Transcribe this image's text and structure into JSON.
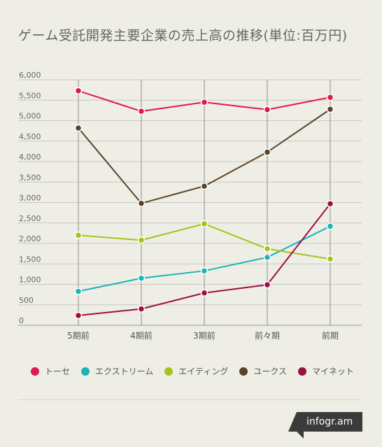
{
  "title": "ゲーム受託開発主要企業の売上高の推移(単位:百万円)",
  "brand": "infogr.am",
  "chart_data": {
    "type": "line",
    "categories": [
      "5期前",
      "4期前",
      "3期前",
      "前々期",
      "前期"
    ],
    "y_ticks": [
      "0",
      "500",
      "1,000",
      "1,500",
      "2,000",
      "2,500",
      "3,000",
      "3,500",
      "4,000",
      "4,500",
      "5,000",
      "5,500",
      "6,000"
    ],
    "ylim": [
      0,
      6000
    ],
    "grid": true,
    "legend_position": "bottom",
    "series": [
      {
        "name": "トーセ",
        "color": "#e0194b",
        "values": [
          5730,
          5230,
          5450,
          5270,
          5570
        ]
      },
      {
        "name": "エクストリーム",
        "color": "#1ab5b5",
        "values": [
          830,
          1150,
          1330,
          1660,
          2420
        ]
      },
      {
        "name": "エイティング",
        "color": "#a8c21c",
        "values": [
          2200,
          2080,
          2480,
          1870,
          1620
        ]
      },
      {
        "name": "ユークス",
        "color": "#5c4326",
        "values": [
          4820,
          2980,
          3400,
          4230,
          5280
        ]
      },
      {
        "name": "マイネット",
        "color": "#9c0f44",
        "values": [
          240,
          400,
          790,
          990,
          2970
        ]
      }
    ]
  }
}
